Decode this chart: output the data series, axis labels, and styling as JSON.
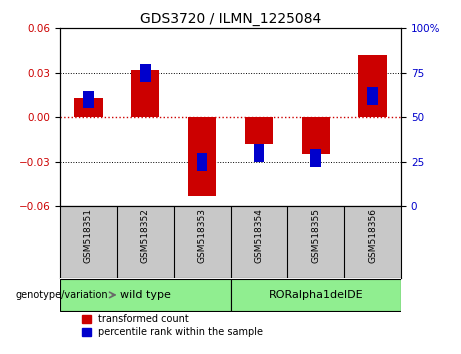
{
  "title": "GDS3720 / ILMN_1225084",
  "samples": [
    "GSM518351",
    "GSM518352",
    "GSM518353",
    "GSM518354",
    "GSM518355",
    "GSM518356"
  ],
  "red_values": [
    0.013,
    0.032,
    -0.053,
    -0.018,
    -0.025,
    0.042
  ],
  "blue_pct": [
    60,
    75,
    25,
    30,
    27,
    62
  ],
  "ylim_left": [
    -0.06,
    0.06
  ],
  "ylim_right": [
    0,
    100
  ],
  "yticks_left": [
    -0.06,
    -0.03,
    0,
    0.03,
    0.06
  ],
  "yticks_right": [
    0,
    25,
    50,
    75,
    100
  ],
  "red_color": "#CC0000",
  "blue_color": "#0000CC",
  "bar_width": 0.5,
  "blue_marker_size": 0.006,
  "genotype_label": "genotype/variation",
  "group1_label": "wild type",
  "group2_label": "RORalpha1delDE",
  "group_color": "#90EE90",
  "legend_items": [
    {
      "label": "transformed count",
      "color": "#CC0000"
    },
    {
      "label": "percentile rank within the sample",
      "color": "#0000CC"
    }
  ],
  "zero_line_color": "#CC0000",
  "plot_bg_color": "#FFFFFF",
  "outer_bg_color": "#FFFFFF",
  "sample_bg_color": "#C8C8C8"
}
